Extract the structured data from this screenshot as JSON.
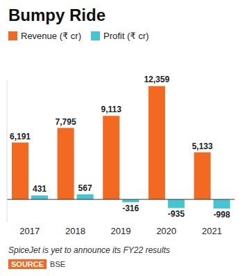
{
  "chart_data": {
    "type": "bar",
    "title": "Bumpy Ride",
    "categories": [
      "2017",
      "2018",
      "2019",
      "2020",
      "2021"
    ],
    "series": [
      {
        "name": "Revenue (₹ cr)",
        "color": "#f26a21",
        "values": [
          6191,
          7795,
          9113,
          12359,
          5133
        ]
      },
      {
        "name": "Profit (₹ cr)",
        "color": "#45c4d2",
        "values": [
          431,
          567,
          -316,
          -935,
          -998
        ]
      }
    ],
    "ylim": [
      -2500,
      13000
    ],
    "data_labels": true,
    "tick_labels": "x",
    "legend": "top left",
    "annotations": [
      "SpiceJet is yet to announce its FY22 results"
    ],
    "source": {
      "label": "SOURCE",
      "text": "BSE"
    }
  }
}
